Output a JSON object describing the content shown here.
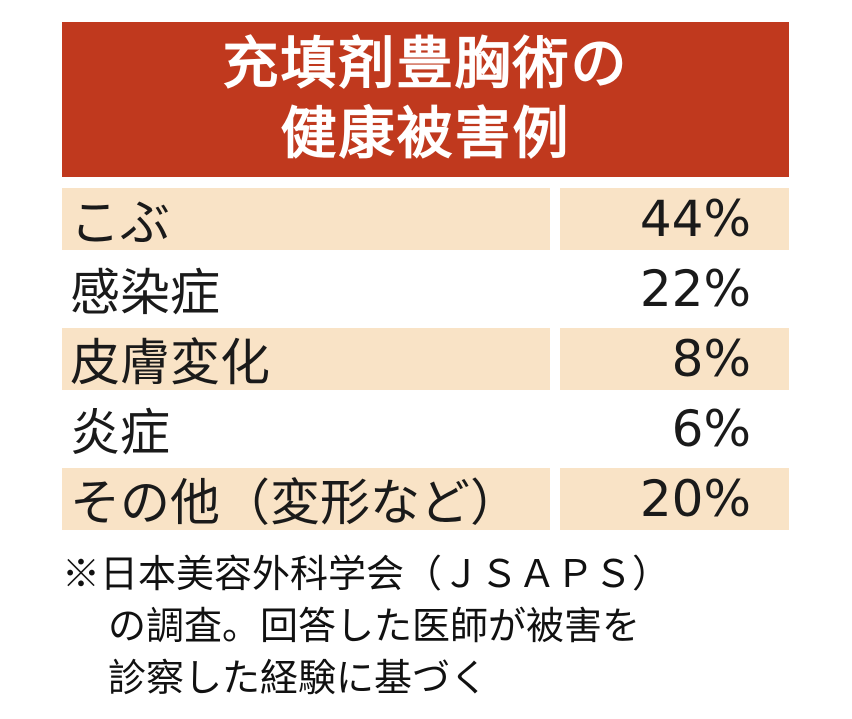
{
  "title": {
    "line1": "充填剤豊胸術の",
    "line2": "健康被害例"
  },
  "colors": {
    "header_bg": "#c0391e",
    "row_shade": "#f9e3c6",
    "text": "#1a1a1a"
  },
  "chart_data": {
    "type": "table",
    "title": "充填剤豊胸術の健康被害例",
    "rows": [
      {
        "label": "こぶ",
        "value": "44%"
      },
      {
        "label": "感染症",
        "value": "22%"
      },
      {
        "label": "皮膚変化",
        "value": "8%"
      },
      {
        "label": "炎症",
        "value": "6%"
      },
      {
        "label": "その他（変形など）",
        "value": "20%"
      }
    ],
    "categories": [
      "こぶ",
      "感染症",
      "皮膚変化",
      "炎症",
      "その他（変形など）"
    ],
    "values": [
      44,
      22,
      8,
      6,
      20
    ]
  },
  "note": {
    "line1": "※日本美容外科学会（ＪＳＡＰＳ）",
    "line2": "の調査。回答した医師が被害を",
    "line3": "診察した経験に基づく"
  }
}
